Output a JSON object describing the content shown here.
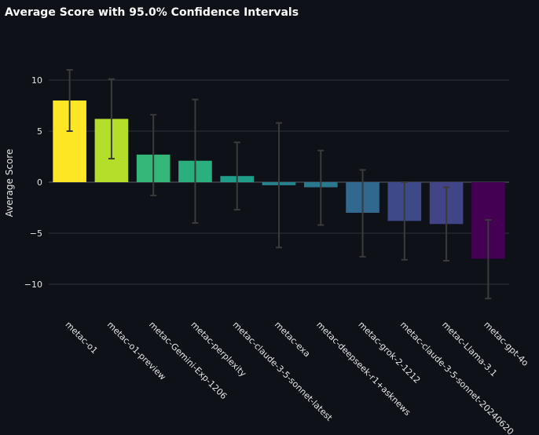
{
  "chart_data": {
    "type": "bar",
    "title": "Average Score with 95.0% Confidence Intervals",
    "xlabel": "",
    "ylabel": "Average Score",
    "ylim": [
      -12.5,
      14
    ],
    "yticks": [
      10,
      5,
      0,
      -5,
      -10
    ],
    "ytick_labels": [
      "10",
      "5",
      "0",
      "−5",
      "−10"
    ],
    "grid": true,
    "categories": [
      "metac-o1",
      "metac-o1-preview",
      "metac-Gemini-Exp-1206",
      "metac-perplexity",
      "metac-claude-3-5-sonnet-latest",
      "metac-exa",
      "metac-deepseek-r1+asknews",
      "metac-grok-2-1212",
      "metac-claude-3-5-sonnet-20240620",
      "metac-Llama-3.1",
      "metac-gpt-4o"
    ],
    "values": [
      8.0,
      6.2,
      2.7,
      2.1,
      0.6,
      -0.3,
      -0.5,
      -3.0,
      -3.8,
      -4.1,
      -7.5
    ],
    "ci_low": [
      5.0,
      2.3,
      -1.3,
      -4.0,
      -2.7,
      -6.4,
      -4.2,
      -7.3,
      -7.6,
      -7.7,
      -11.4
    ],
    "ci_high": [
      11.0,
      10.1,
      6.6,
      8.1,
      3.9,
      5.8,
      3.1,
      1.2,
      0.0,
      -0.5,
      -3.7
    ],
    "colors": [
      "#fde725",
      "#b5de2b",
      "#35b779",
      "#2ab07f",
      "#1f9e89",
      "#26828e",
      "#2a788e",
      "#31688e",
      "#3e4989",
      "#414487",
      "#440154"
    ]
  }
}
